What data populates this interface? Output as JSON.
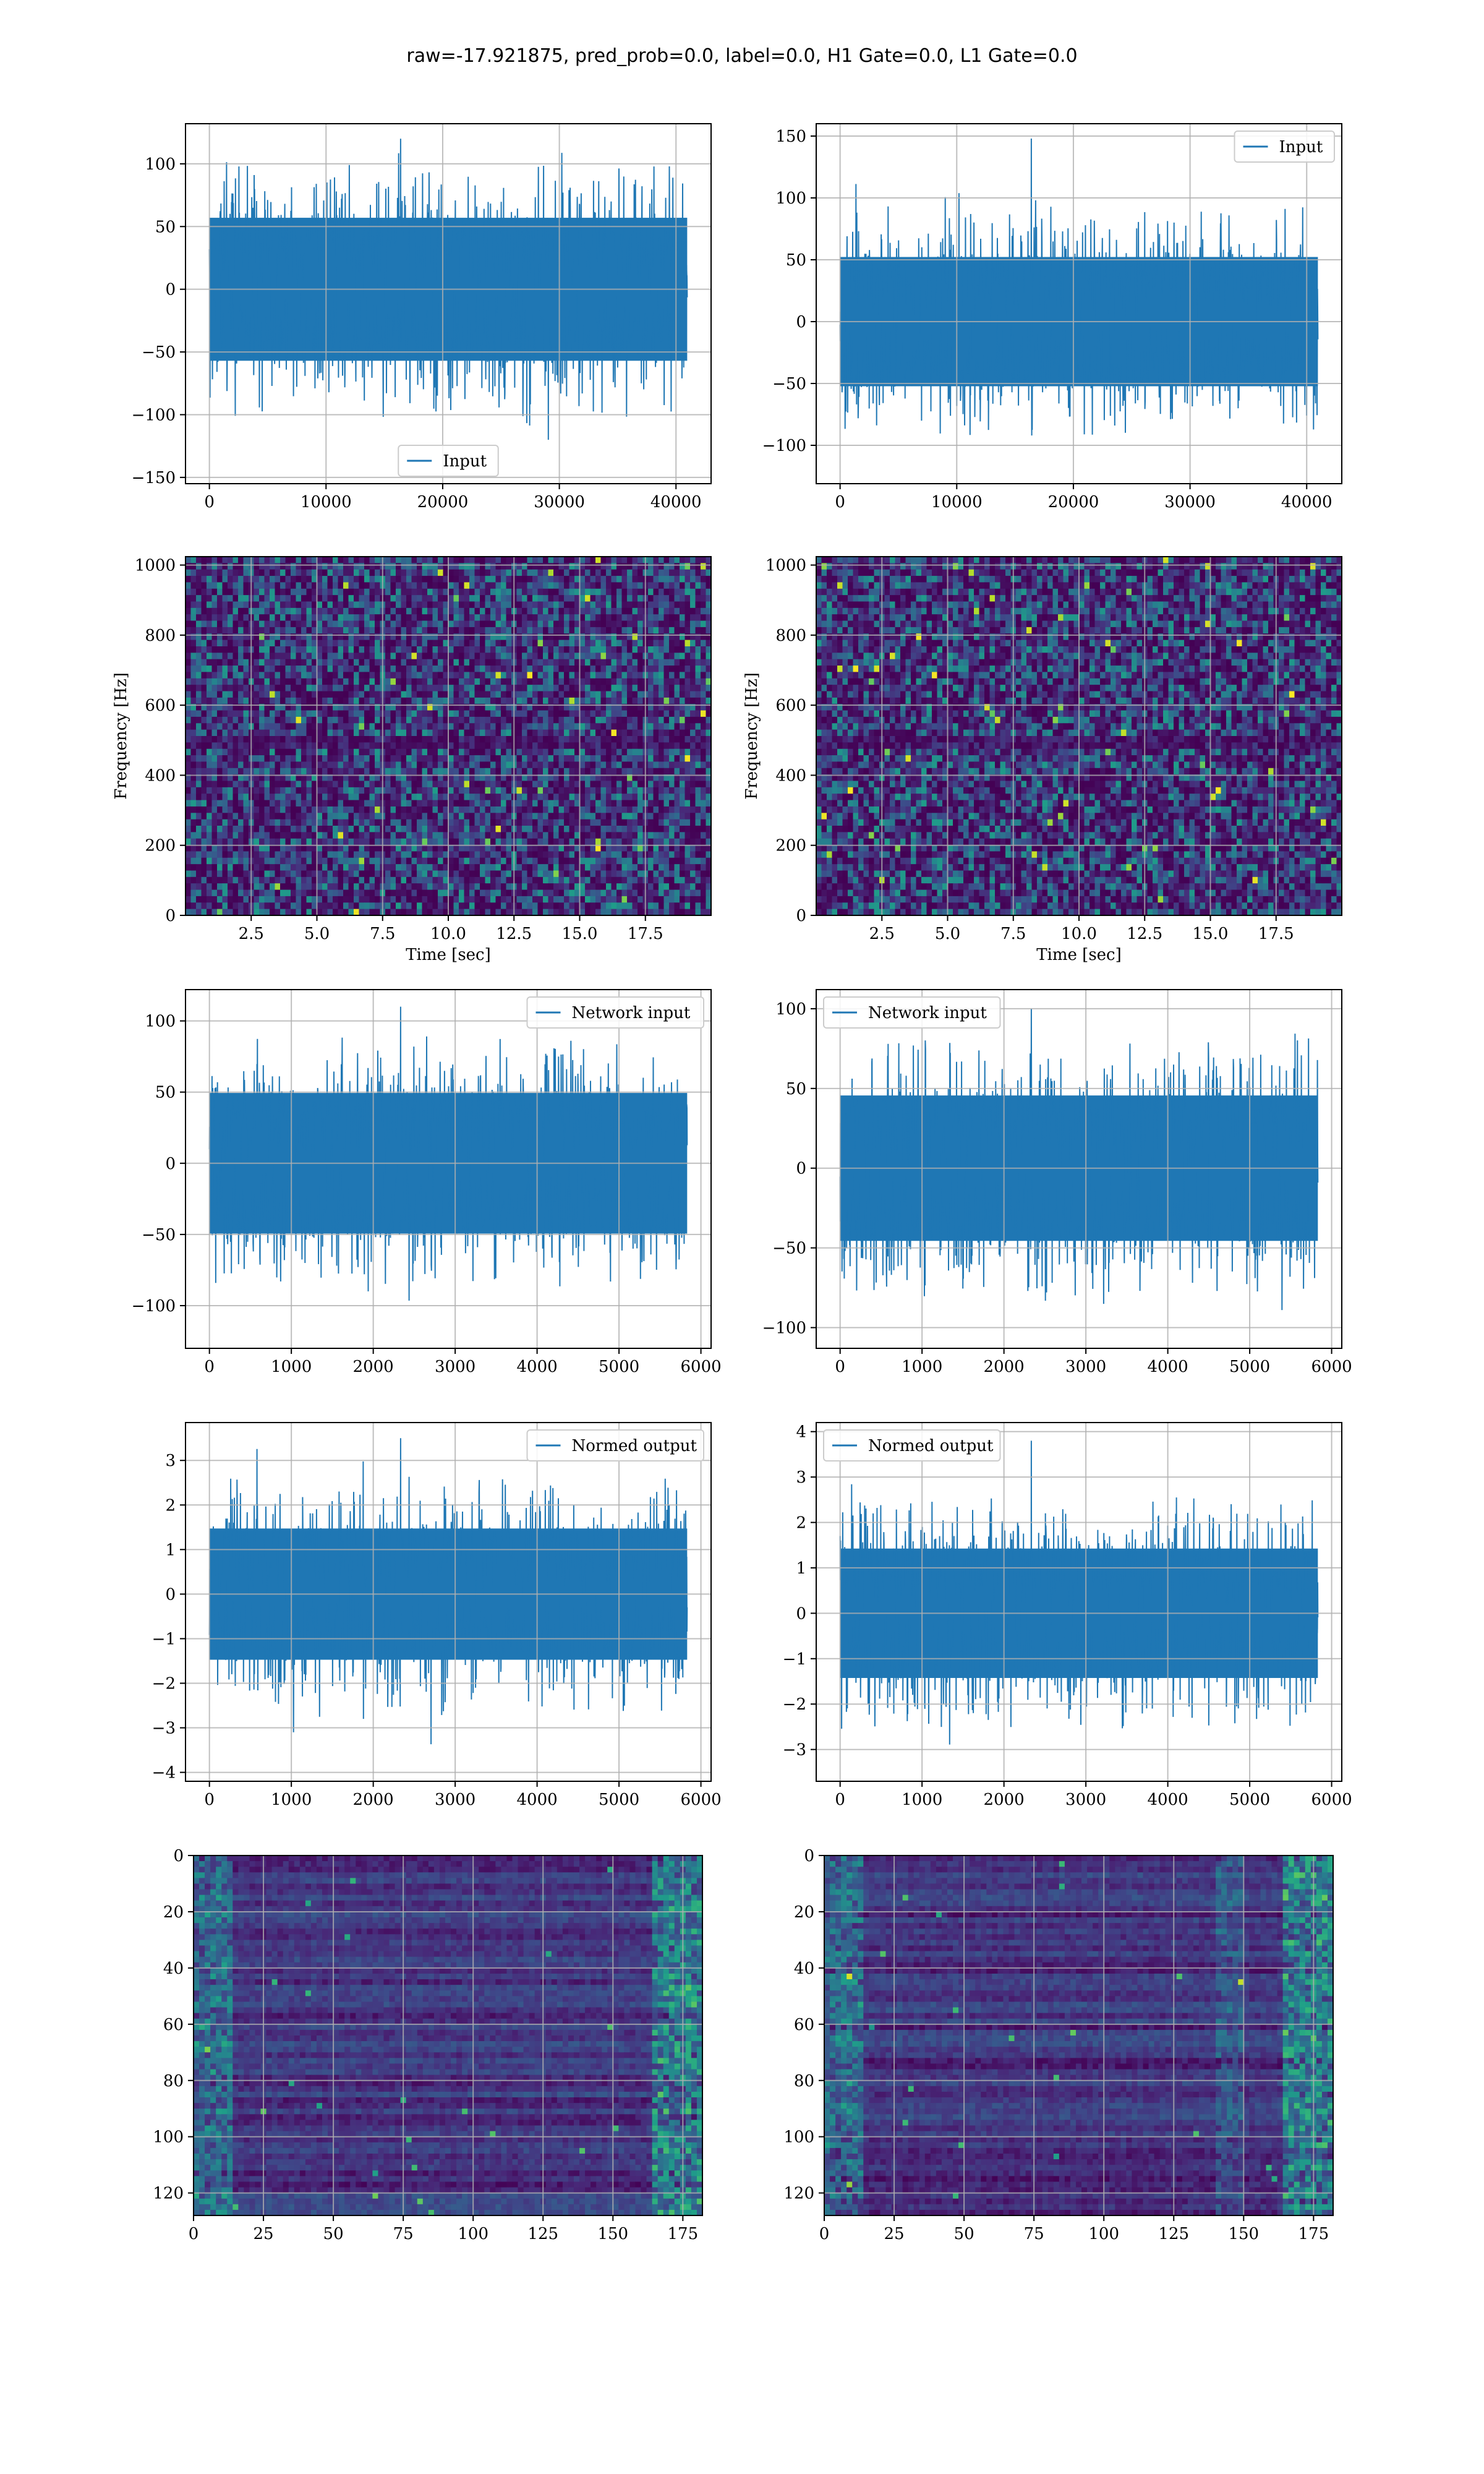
{
  "title": "raw=-17.921875, pred_prob=0.0, label=0.0, H1 Gate=0.0, L1 Gate=0.0",
  "colors": {
    "line": "#1f77b4",
    "grid": "#b0b0b0",
    "viridis": [
      "#440154",
      "#482878",
      "#3e4989",
      "#31688e",
      "#26828e",
      "#1f9e89",
      "#35b779",
      "#6ece58",
      "#b5de2b",
      "#fde725"
    ]
  },
  "chart_data": [
    {
      "id": "input-h1",
      "type": "line",
      "signal": "noise",
      "legend": "Input",
      "legend_loc": "lower-center",
      "xlim": [
        -2048,
        43008
      ],
      "ylim": [
        -155,
        132
      ],
      "xticks": [
        0,
        10000,
        20000,
        30000,
        40000
      ],
      "yticks": [
        -150,
        -100,
        -50,
        0,
        50,
        100
      ],
      "xdata": [
        0,
        40960
      ],
      "amp": 60,
      "peak": 120
    },
    {
      "id": "input-l1",
      "type": "line",
      "signal": "noise",
      "legend": "Input",
      "legend_loc": "upper-right",
      "xlim": [
        -2048,
        43008
      ],
      "ylim": [
        -131,
        160
      ],
      "xticks": [
        0,
        10000,
        20000,
        30000,
        40000
      ],
      "yticks": [
        -100,
        -50,
        0,
        50,
        100,
        150
      ],
      "xdata": [
        0,
        40960
      ],
      "amp": 55,
      "peak": 148
    },
    {
      "id": "spec-h1",
      "type": "heatmap",
      "kind": "spectrogram",
      "xlabel": "Time [sec]",
      "ylabel": "Frequency [Hz]",
      "xlim": [
        0,
        20
      ],
      "ylim": [
        0,
        1024
      ],
      "xticks": [
        2.5,
        5.0,
        7.5,
        10.0,
        12.5,
        15.0,
        17.5
      ],
      "yticks": [
        0,
        200,
        400,
        600,
        800,
        1000
      ]
    },
    {
      "id": "spec-l1",
      "type": "heatmap",
      "kind": "spectrogram",
      "xlabel": "Time [sec]",
      "ylabel": "Frequency [Hz]",
      "xlim": [
        0,
        20
      ],
      "ylim": [
        0,
        1024
      ],
      "xticks": [
        2.5,
        5.0,
        7.5,
        10.0,
        12.5,
        15.0,
        17.5
      ],
      "yticks": [
        0,
        200,
        400,
        600,
        800,
        1000
      ]
    },
    {
      "id": "network-input-h1",
      "type": "line",
      "signal": "noise",
      "legend": "Network input",
      "legend_loc": "upper-right",
      "xlim": [
        -292,
        6124
      ],
      "ylim": [
        -130,
        122
      ],
      "xticks": [
        0,
        1000,
        2000,
        3000,
        4000,
        5000,
        6000
      ],
      "yticks": [
        -100,
        -50,
        0,
        50,
        100
      ],
      "xdata": [
        0,
        5832
      ],
      "amp": 52,
      "peak": 110
    },
    {
      "id": "network-input-l1",
      "type": "line",
      "signal": "noise",
      "legend": "Network input",
      "legend_loc": "upper-left",
      "xlim": [
        -292,
        6124
      ],
      "ylim": [
        -113,
        112
      ],
      "xticks": [
        0,
        1000,
        2000,
        3000,
        4000,
        5000,
        6000
      ],
      "yticks": [
        -100,
        -50,
        0,
        50,
        100
      ],
      "xdata": [
        0,
        5832
      ],
      "amp": 48,
      "peak": 100
    },
    {
      "id": "normed-output-h1",
      "type": "line",
      "signal": "noise",
      "legend": "Normed output",
      "legend_loc": "upper-right",
      "xlim": [
        -292,
        6124
      ],
      "ylim": [
        -4.2,
        3.85
      ],
      "xticks": [
        0,
        1000,
        2000,
        3000,
        4000,
        5000,
        6000
      ],
      "yticks": [
        -4,
        -3,
        -2,
        -1,
        0,
        1,
        2,
        3
      ],
      "xdata": [
        0,
        5832
      ],
      "amp": 1.55,
      "peak": 3.5
    },
    {
      "id": "normed-output-l1",
      "type": "line",
      "signal": "noise",
      "legend": "Normed output",
      "legend_loc": "upper-left",
      "xlim": [
        -292,
        6124
      ],
      "ylim": [
        -3.7,
        4.2
      ],
      "xticks": [
        0,
        1000,
        2000,
        3000,
        4000,
        5000,
        6000
      ],
      "yticks": [
        -3,
        -2,
        -1,
        0,
        1,
        2,
        3,
        4
      ],
      "xdata": [
        0,
        5832
      ],
      "amp": 1.5,
      "peak": 3.8
    },
    {
      "id": "features-h1",
      "type": "heatmap",
      "kind": "features",
      "xlim": [
        0,
        182
      ],
      "ylim": [
        0,
        128
      ],
      "y_inverted": true,
      "xticks": [
        0,
        25,
        50,
        75,
        100,
        125,
        150,
        175
      ],
      "yticks": [
        0,
        20,
        40,
        60,
        80,
        100,
        120
      ]
    },
    {
      "id": "features-l1",
      "type": "heatmap",
      "kind": "features",
      "xlim": [
        0,
        182
      ],
      "ylim": [
        0,
        128
      ],
      "y_inverted": true,
      "xticks": [
        0,
        25,
        50,
        75,
        100,
        125,
        150,
        175
      ],
      "yticks": [
        0,
        20,
        40,
        60,
        80,
        100,
        120
      ]
    }
  ]
}
